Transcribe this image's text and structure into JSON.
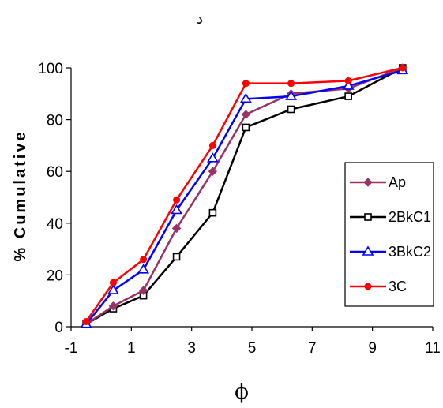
{
  "chart_data": {
    "type": "line",
    "title": "د",
    "xlabel": "ϕ",
    "ylabel": "% Cumulative",
    "xlim": [
      -1,
      11
    ],
    "ylim": [
      0,
      100
    ],
    "xticks": [
      -1,
      1,
      3,
      5,
      7,
      9,
      11
    ],
    "yticks": [
      0,
      20,
      40,
      60,
      80,
      100
    ],
    "legend_position": "right",
    "series": [
      {
        "name": "Ap",
        "color": "#993366",
        "marker": "diamond",
        "x": [
          -0.5,
          0.4,
          1.4,
          2.5,
          3.7,
          4.8,
          6.3,
          8.2,
          10.0
        ],
        "y": [
          1,
          8,
          14,
          38,
          60,
          82,
          90,
          92,
          100
        ]
      },
      {
        "name": "2BkC1",
        "color": "#000000",
        "marker": "square",
        "x": [
          -0.5,
          0.4,
          1.4,
          2.5,
          3.7,
          4.8,
          6.3,
          8.2,
          10.0
        ],
        "y": [
          1,
          7,
          12,
          27,
          44,
          77,
          84,
          89,
          100
        ]
      },
      {
        "name": "3BkC2",
        "color": "#0000ff",
        "marker": "triangle",
        "x": [
          -0.5,
          0.4,
          1.4,
          2.5,
          3.7,
          4.8,
          6.3,
          8.2,
          10.0
        ],
        "y": [
          1,
          14,
          22,
          45,
          65,
          88,
          89,
          93,
          99
        ]
      },
      {
        "name": "3C",
        "color": "#ff0000",
        "marker": "circle",
        "x": [
          -0.5,
          0.4,
          1.4,
          2.5,
          3.7,
          4.8,
          6.3,
          8.2,
          10.0
        ],
        "y": [
          2,
          17,
          26,
          49,
          70,
          94,
          94,
          95,
          100
        ]
      }
    ]
  }
}
